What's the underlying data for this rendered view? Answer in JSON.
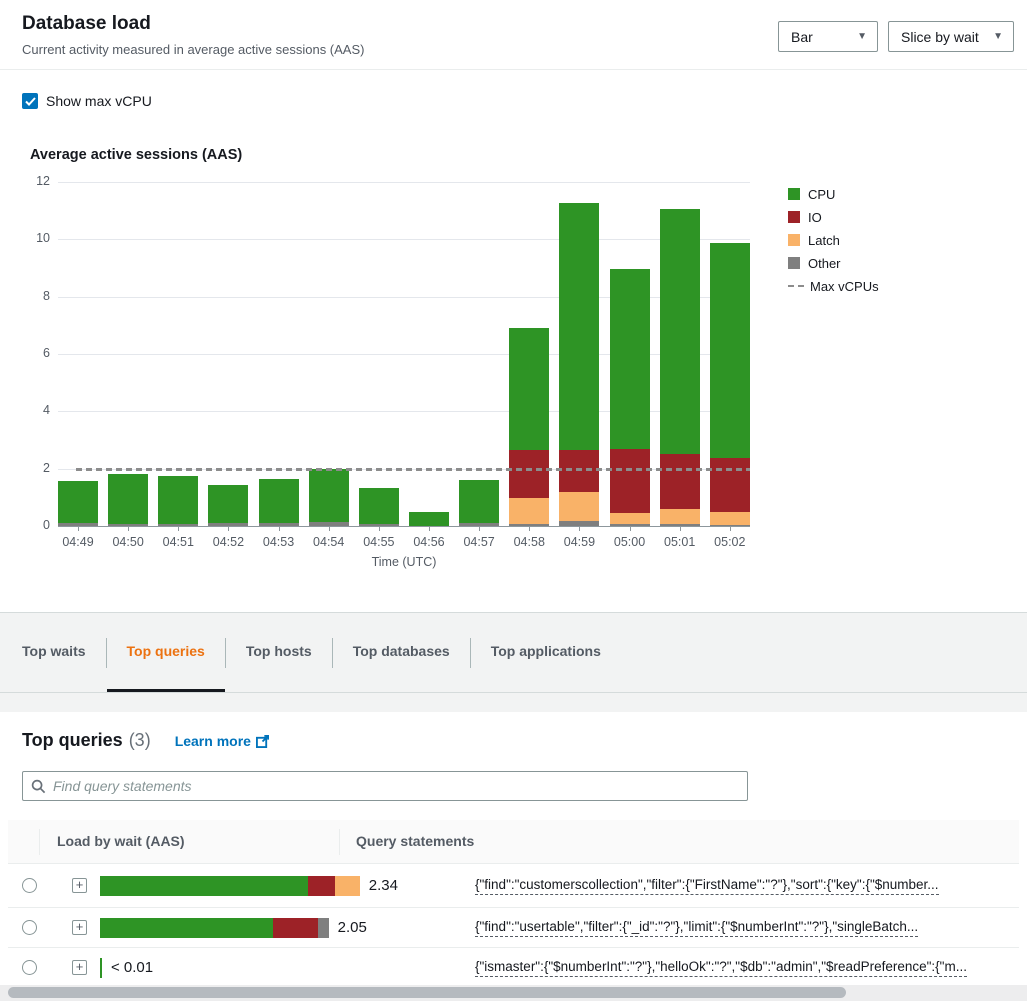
{
  "header": {
    "title": "Database load",
    "subtitle": "Current activity measured in average active sessions (AAS)",
    "chart_type_dropdown": "Bar",
    "slice_dropdown": "Slice by wait"
  },
  "controls": {
    "show_max_vcpu_label": "Show max vCPU",
    "show_max_vcpu_checked": true
  },
  "chart_data": {
    "type": "bar",
    "stacked": true,
    "title": "Average active sessions (AAS)",
    "xlabel": "Time (UTC)",
    "ylabel": "",
    "ylim": [
      0,
      12
    ],
    "yticks": [
      0,
      2,
      4,
      6,
      8,
      10,
      12
    ],
    "grid": true,
    "legend_position": "right",
    "max_vcpus": 2,
    "categories": [
      "04:49",
      "04:50",
      "04:51",
      "04:52",
      "04:53",
      "04:54",
      "04:55",
      "04:56",
      "04:57",
      "04:58",
      "04:59",
      "05:00",
      "05:01",
      "05:02"
    ],
    "series": [
      {
        "name": "Other",
        "color": "#7f7f7f",
        "values": [
          0.1,
          0.07,
          0.06,
          0.12,
          0.12,
          0.15,
          0.08,
          0,
          0.1,
          0.06,
          0.18,
          0.08,
          0.06,
          0.05
        ]
      },
      {
        "name": "Latch",
        "color": "#f9b268",
        "values": [
          0,
          0,
          0,
          0,
          0,
          0,
          0,
          0,
          0,
          0.92,
          1.02,
          0.36,
          0.53,
          0.43
        ]
      },
      {
        "name": "IO",
        "color": "#9d2227",
        "values": [
          0,
          0,
          0,
          0,
          0,
          0,
          0,
          0,
          0,
          1.66,
          1.45,
          2.26,
          1.91,
          1.89
        ]
      },
      {
        "name": "CPU",
        "color": "#2e9425",
        "values": [
          1.47,
          1.76,
          1.7,
          1.32,
          1.53,
          1.83,
          1.23,
          0.5,
          1.5,
          4.27,
          8.61,
          6.26,
          8.55,
          7.5
        ]
      }
    ],
    "stack_order_bottom_to_top": [
      "Other",
      "Latch",
      "IO",
      "CPU"
    ],
    "legend": [
      {
        "label": "CPU",
        "type": "swatch",
        "color": "#2e9425"
      },
      {
        "label": "IO",
        "type": "swatch",
        "color": "#9d2227"
      },
      {
        "label": "Latch",
        "type": "swatch",
        "color": "#f9b268"
      },
      {
        "label": "Other",
        "type": "swatch",
        "color": "#7f7f7f"
      },
      {
        "label": "Max vCPUs",
        "type": "dashed-line",
        "color": "#8c8c8c"
      }
    ]
  },
  "tabs": {
    "items": [
      {
        "label": "Top waits",
        "active": false
      },
      {
        "label": "Top queries",
        "active": true
      },
      {
        "label": "Top hosts",
        "active": false
      },
      {
        "label": "Top databases",
        "active": false
      },
      {
        "label": "Top applications",
        "active": false
      }
    ]
  },
  "panel": {
    "title": "Top queries",
    "count": "(3)",
    "learn_more": "Learn more",
    "search_placeholder": "Find query statements",
    "table": {
      "columns": [
        "Load by wait (AAS)",
        "Query statements"
      ],
      "wait_colors": {
        "CPU": "#2e9425",
        "IO": "#9d2227",
        "Latch": "#f9b268",
        "Other": "#7f7f7f"
      },
      "rows": [
        {
          "load_display": "2.34",
          "segments": [
            {
              "wait": "CPU",
              "value": 1.87
            },
            {
              "wait": "IO",
              "value": 0.25
            },
            {
              "wait": "Latch",
              "value": 0.22
            }
          ],
          "query": "{\"find\":\"customerscollection\",\"filter\":{\"FirstName\":\"?\"},\"sort\":{\"key\":{\"$number..."
        },
        {
          "load_display": "2.05",
          "segments": [
            {
              "wait": "CPU",
              "value": 1.56
            },
            {
              "wait": "IO",
              "value": 0.4
            },
            {
              "wait": "Other",
              "value": 0.1
            }
          ],
          "query": "{\"find\":\"usertable\",\"filter\":{\"_id\":\"?\"},\"limit\":{\"$numberInt\":\"?\"},\"singleBatch..."
        },
        {
          "load_display": "< 0.01",
          "segments": [
            {
              "wait": "CPU",
              "value": 0.01
            }
          ],
          "query": "{\"ismaster\":{\"$numberInt\":\"?\"},\"helloOk\":\"?\",\"$db\":\"admin\",\"$readPreference\":{\"m..."
        }
      ]
    }
  },
  "icons": {
    "expand": "+",
    "caret": "▼"
  }
}
